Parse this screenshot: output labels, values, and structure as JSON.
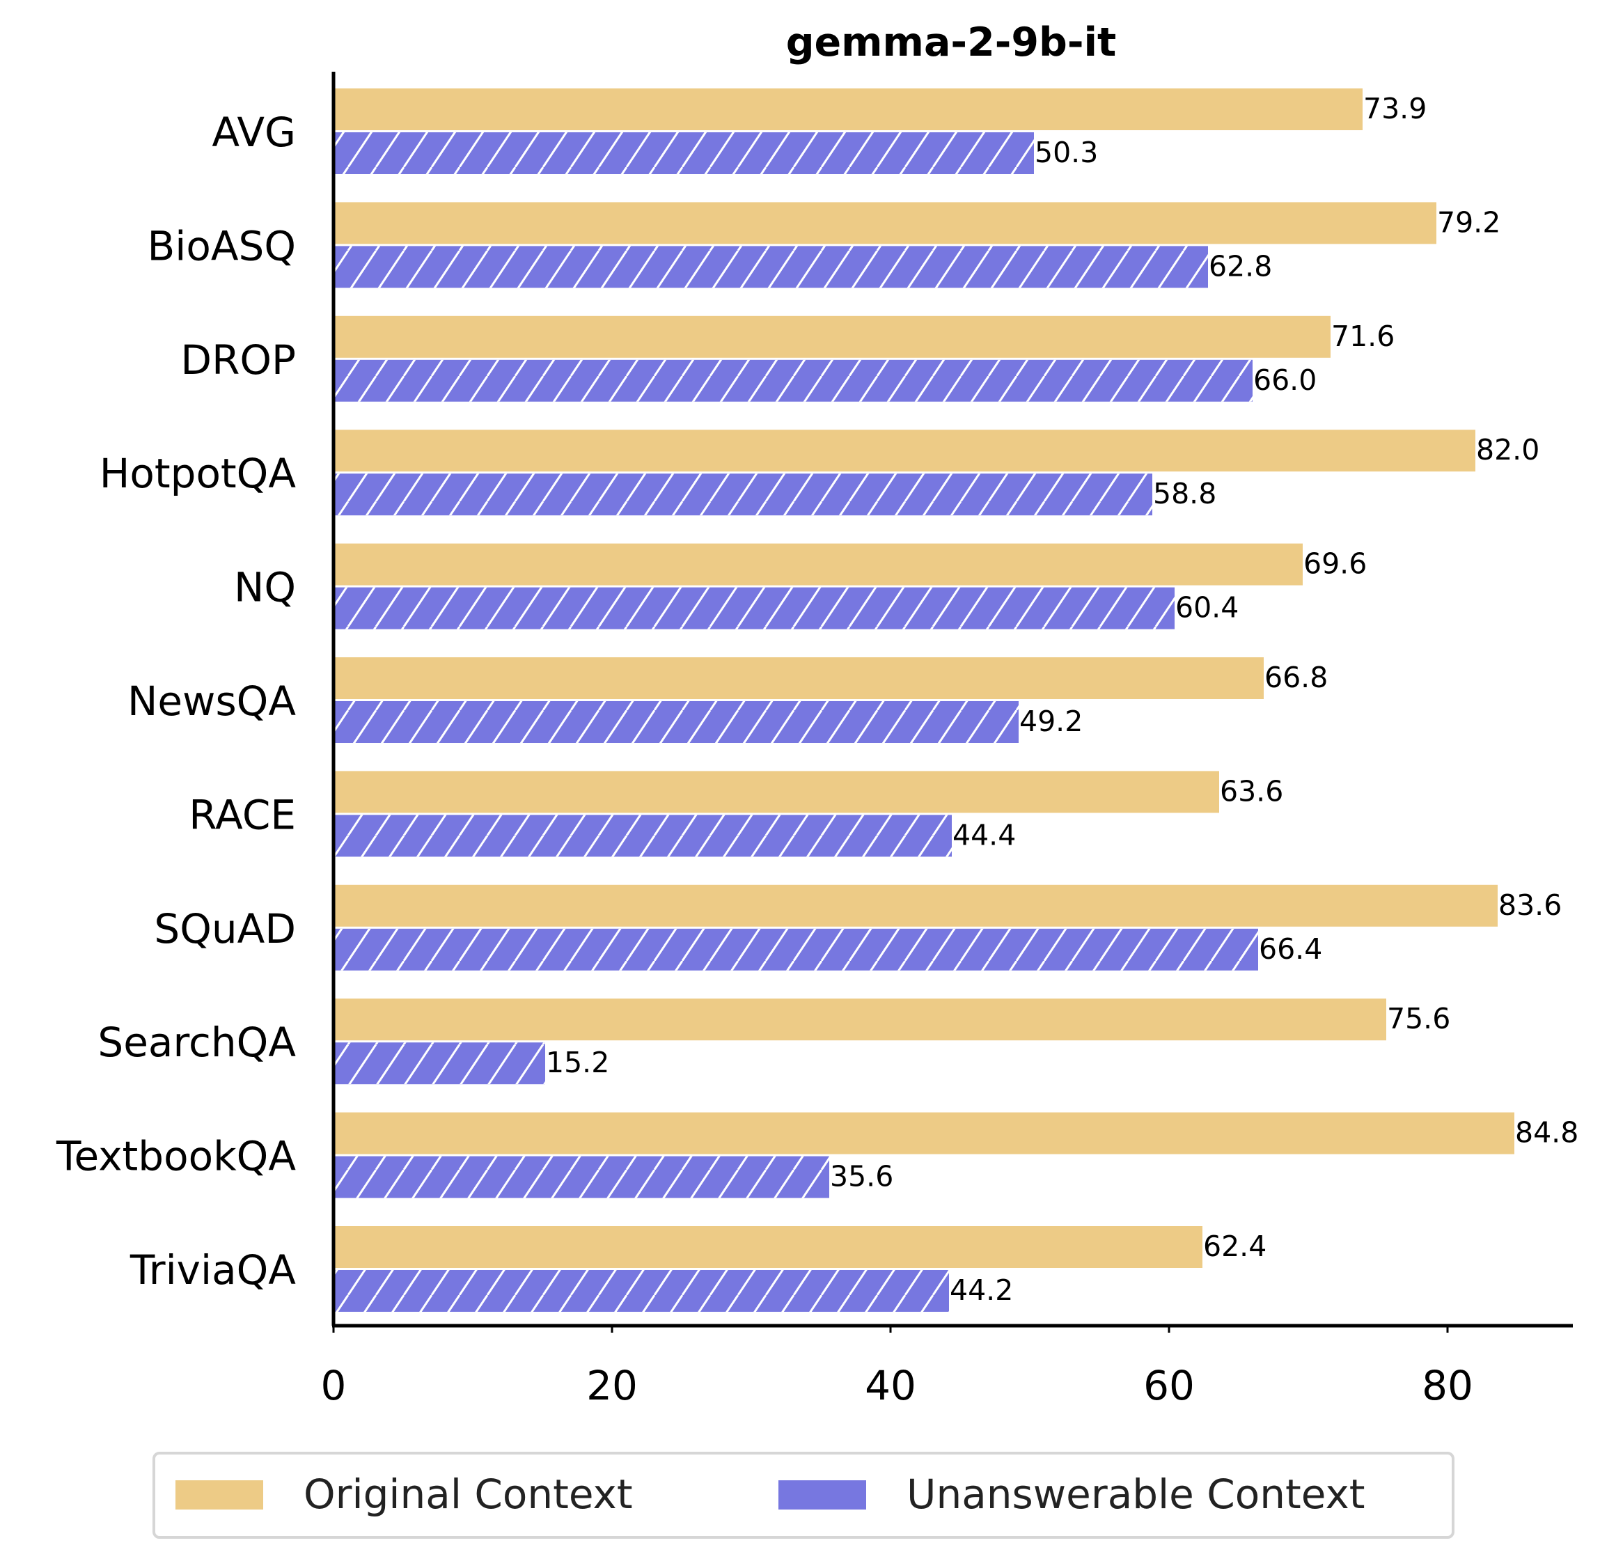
{
  "chart_data": {
    "type": "bar",
    "orientation": "horizontal",
    "title": "gemma-2-9b-it",
    "xlabel": "",
    "ylabel": "",
    "xlim": [
      0,
      89
    ],
    "xticks": [
      "0",
      "20",
      "40",
      "60",
      "80"
    ],
    "categories": [
      "AVG",
      "BioASQ",
      "DROP",
      "HotpotQA",
      "NQ",
      "NewsQA",
      "RACE",
      "SQuAD",
      "SearchQA",
      "TextbookQA",
      "TriviaQA"
    ],
    "series": [
      {
        "name": "Original Context",
        "color": "#EDCB86",
        "hatch": false,
        "values": [
          73.9,
          79.2,
          71.6,
          82.0,
          69.6,
          66.8,
          63.6,
          83.6,
          75.6,
          84.8,
          62.4
        ],
        "labels": [
          "73.9",
          "79.2",
          "71.6",
          "82.0",
          "69.6",
          "66.8",
          "63.6",
          "83.6",
          "75.6",
          "84.8",
          "62.4"
        ]
      },
      {
        "name": "Unanswerable Context",
        "color": "#7777E0",
        "hatch": true,
        "values": [
          50.3,
          62.8,
          66.0,
          58.8,
          60.4,
          49.2,
          44.4,
          66.4,
          15.2,
          35.6,
          44.2
        ],
        "labels": [
          "50.3",
          "62.8",
          "66.0",
          "58.8",
          "60.4",
          "49.2",
          "44.4",
          "66.4",
          "15.2",
          "35.6",
          "44.2"
        ]
      }
    ],
    "grid": false,
    "legend_position": "bottom-center"
  }
}
